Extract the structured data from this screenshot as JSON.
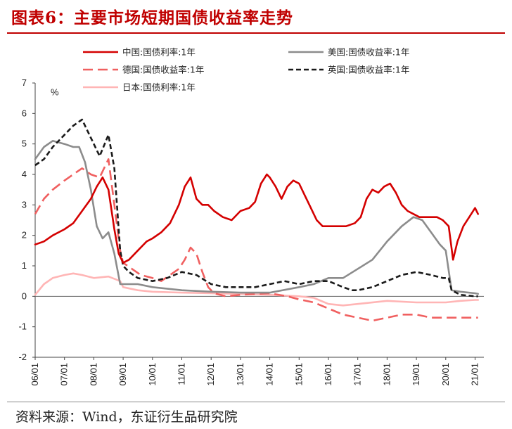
{
  "title": "图表6：主要市场短期国债收益率走势",
  "source": "资料来源：Wind，东证衍生品研究院",
  "chart_data": {
    "type": "line",
    "ylabel": "%",
    "ylim": [
      -2,
      7
    ],
    "yticks": [
      -2,
      -1,
      0,
      1,
      2,
      3,
      4,
      5,
      6,
      7
    ],
    "xlim": [
      2006.0,
      2021.3
    ],
    "xticks": [
      {
        "label": "06/01",
        "x": 2006.0
      },
      {
        "label": "07/01",
        "x": 2007.0
      },
      {
        "label": "08/01",
        "x": 2008.0
      },
      {
        "label": "09/01",
        "x": 2009.0
      },
      {
        "label": "10/01",
        "x": 2010.0
      },
      {
        "label": "11/01",
        "x": 2011.0
      },
      {
        "label": "12/01",
        "x": 2012.0
      },
      {
        "label": "13/01",
        "x": 2013.0
      },
      {
        "label": "14/01",
        "x": 2014.0
      },
      {
        "label": "15/01",
        "x": 2015.0
      },
      {
        "label": "16/01",
        "x": 2016.0
      },
      {
        "label": "17/01",
        "x": 2017.0
      },
      {
        "label": "18/01",
        "x": 2018.0
      },
      {
        "label": "19/01",
        "x": 2019.0
      },
      {
        "label": "20/01",
        "x": 2020.0
      },
      {
        "label": "21/01",
        "x": 2021.0
      }
    ],
    "legend_placement": "top",
    "series": [
      {
        "name": "中国:国债利率:1年",
        "color": "#d40000",
        "dash": "solid",
        "x": [
          2006.0,
          2006.3,
          2006.6,
          2007.0,
          2007.3,
          2007.6,
          2007.9,
          2008.1,
          2008.3,
          2008.5,
          2008.7,
          2008.85,
          2009.0,
          2009.2,
          2009.5,
          2009.8,
          2010.0,
          2010.3,
          2010.6,
          2010.9,
          2011.1,
          2011.3,
          2011.5,
          2011.7,
          2011.9,
          2012.1,
          2012.4,
          2012.7,
          2013.0,
          2013.3,
          2013.5,
          2013.7,
          2013.9,
          2014.0,
          2014.2,
          2014.4,
          2014.6,
          2014.8,
          2015.0,
          2015.2,
          2015.4,
          2015.6,
          2015.8,
          2016.0,
          2016.3,
          2016.6,
          2016.9,
          2017.1,
          2017.3,
          2017.5,
          2017.7,
          2017.9,
          2018.1,
          2018.3,
          2018.5,
          2018.7,
          2018.9,
          2019.1,
          2019.3,
          2019.5,
          2019.7,
          2019.9,
          2020.1,
          2020.25,
          2020.4,
          2020.6,
          2020.8,
          2021.0,
          2021.1
        ],
        "values": [
          1.7,
          1.8,
          2.0,
          2.2,
          2.4,
          2.8,
          3.2,
          3.6,
          3.9,
          3.5,
          2.2,
          1.4,
          1.1,
          1.2,
          1.5,
          1.8,
          1.9,
          2.1,
          2.4,
          3.0,
          3.6,
          3.9,
          3.2,
          3.0,
          3.0,
          2.8,
          2.6,
          2.5,
          2.8,
          2.9,
          3.1,
          3.7,
          4.0,
          3.9,
          3.6,
          3.2,
          3.6,
          3.8,
          3.7,
          3.3,
          2.9,
          2.5,
          2.3,
          2.3,
          2.3,
          2.3,
          2.4,
          2.6,
          3.2,
          3.5,
          3.4,
          3.6,
          3.7,
          3.4,
          3.0,
          2.8,
          2.7,
          2.6,
          2.6,
          2.6,
          2.6,
          2.5,
          2.3,
          1.2,
          1.8,
          2.3,
          2.6,
          2.9,
          2.7
        ]
      },
      {
        "name": "美国:国债收益率:1年",
        "color": "#8c8c8c",
        "dash": "solid",
        "x": [
          2006.0,
          2006.3,
          2006.6,
          2007.0,
          2007.3,
          2007.5,
          2007.7,
          2007.9,
          2008.1,
          2008.3,
          2008.5,
          2008.7,
          2008.9,
          2009.0,
          2009.5,
          2010.0,
          2011.0,
          2012.0,
          2013.0,
          2014.0,
          2015.0,
          2015.5,
          2016.0,
          2016.5,
          2017.0,
          2017.5,
          2018.0,
          2018.5,
          2018.9,
          2019.2,
          2019.5,
          2019.8,
          2020.0,
          2020.2,
          2020.5,
          2021.0,
          2021.1
        ],
        "values": [
          4.5,
          4.9,
          5.1,
          5.0,
          4.9,
          4.9,
          4.4,
          3.5,
          2.3,
          1.9,
          2.1,
          1.4,
          0.4,
          0.4,
          0.4,
          0.3,
          0.2,
          0.15,
          0.12,
          0.12,
          0.3,
          0.4,
          0.6,
          0.6,
          0.9,
          1.2,
          1.8,
          2.3,
          2.6,
          2.5,
          2.1,
          1.7,
          1.5,
          0.2,
          0.15,
          0.1,
          0.08
        ]
      },
      {
        "name": "德国:国债收益率:1年",
        "color": "#f06060",
        "dash": "long",
        "x": [
          2006.0,
          2006.3,
          2006.6,
          2007.0,
          2007.3,
          2007.6,
          2007.9,
          2008.2,
          2008.5,
          2008.7,
          2008.9,
          2009.0,
          2009.3,
          2009.6,
          2010.0,
          2010.3,
          2010.6,
          2010.9,
          2011.1,
          2011.3,
          2011.5,
          2011.7,
          2011.9,
          2012.1,
          2012.5,
          2013.0,
          2014.0,
          2014.6,
          2015.0,
          2015.5,
          2016.0,
          2016.5,
          2017.0,
          2017.5,
          2018.0,
          2018.5,
          2019.0,
          2019.5,
          2020.0,
          2020.5,
          2021.0,
          2021.1
        ],
        "values": [
          2.7,
          3.2,
          3.5,
          3.8,
          4.0,
          4.2,
          4.0,
          3.9,
          4.5,
          3.0,
          1.5,
          1.1,
          0.9,
          0.7,
          0.6,
          0.5,
          0.7,
          0.9,
          1.2,
          1.6,
          1.4,
          0.8,
          0.3,
          0.1,
          0.0,
          0.05,
          0.1,
          0.0,
          -0.1,
          -0.2,
          -0.4,
          -0.6,
          -0.7,
          -0.8,
          -0.7,
          -0.6,
          -0.6,
          -0.7,
          -0.7,
          -0.7,
          -0.7,
          -0.7
        ]
      },
      {
        "name": "英国:国债收益率:1年",
        "color": "#1a1a1a",
        "dash": "short",
        "x": [
          2006.0,
          2006.3,
          2006.6,
          2007.0,
          2007.3,
          2007.6,
          2007.9,
          2008.2,
          2008.5,
          2008.7,
          2008.9,
          2009.0,
          2009.2,
          2009.5,
          2010.0,
          2010.5,
          2011.0,
          2011.5,
          2012.0,
          2012.5,
          2013.0,
          2013.5,
          2014.0,
          2014.5,
          2015.0,
          2015.5,
          2016.0,
          2016.5,
          2016.8,
          2017.0,
          2017.5,
          2018.0,
          2018.5,
          2019.0,
          2019.5,
          2019.9,
          2020.1,
          2020.2,
          2020.5,
          2021.0,
          2021.1
        ],
        "values": [
          4.3,
          4.5,
          4.9,
          5.3,
          5.6,
          5.8,
          5.2,
          4.6,
          5.3,
          4.2,
          1.5,
          1.0,
          0.8,
          0.6,
          0.5,
          0.6,
          0.8,
          0.7,
          0.4,
          0.3,
          0.3,
          0.3,
          0.4,
          0.5,
          0.4,
          0.5,
          0.5,
          0.3,
          0.2,
          0.2,
          0.3,
          0.5,
          0.7,
          0.8,
          0.7,
          0.6,
          0.6,
          0.2,
          0.05,
          0.0,
          0.0
        ]
      },
      {
        "name": "日本:国债利率:1年",
        "color": "#ffb5b5",
        "dash": "solid",
        "x": [
          2006.0,
          2006.3,
          2006.6,
          2007.0,
          2007.3,
          2007.6,
          2008.0,
          2008.5,
          2008.9,
          2009.0,
          2009.5,
          2010.0,
          2011.0,
          2012.0,
          2013.0,
          2014.0,
          2015.0,
          2015.5,
          2016.0,
          2016.5,
          2017.0,
          2018.0,
          2019.0,
          2020.0,
          2020.5,
          2021.0,
          2021.1
        ],
        "values": [
          0.05,
          0.4,
          0.6,
          0.7,
          0.75,
          0.7,
          0.6,
          0.65,
          0.5,
          0.3,
          0.2,
          0.15,
          0.12,
          0.1,
          0.08,
          0.05,
          0.0,
          -0.05,
          -0.25,
          -0.3,
          -0.25,
          -0.15,
          -0.2,
          -0.2,
          -0.15,
          -0.12,
          -0.12
        ]
      }
    ]
  }
}
